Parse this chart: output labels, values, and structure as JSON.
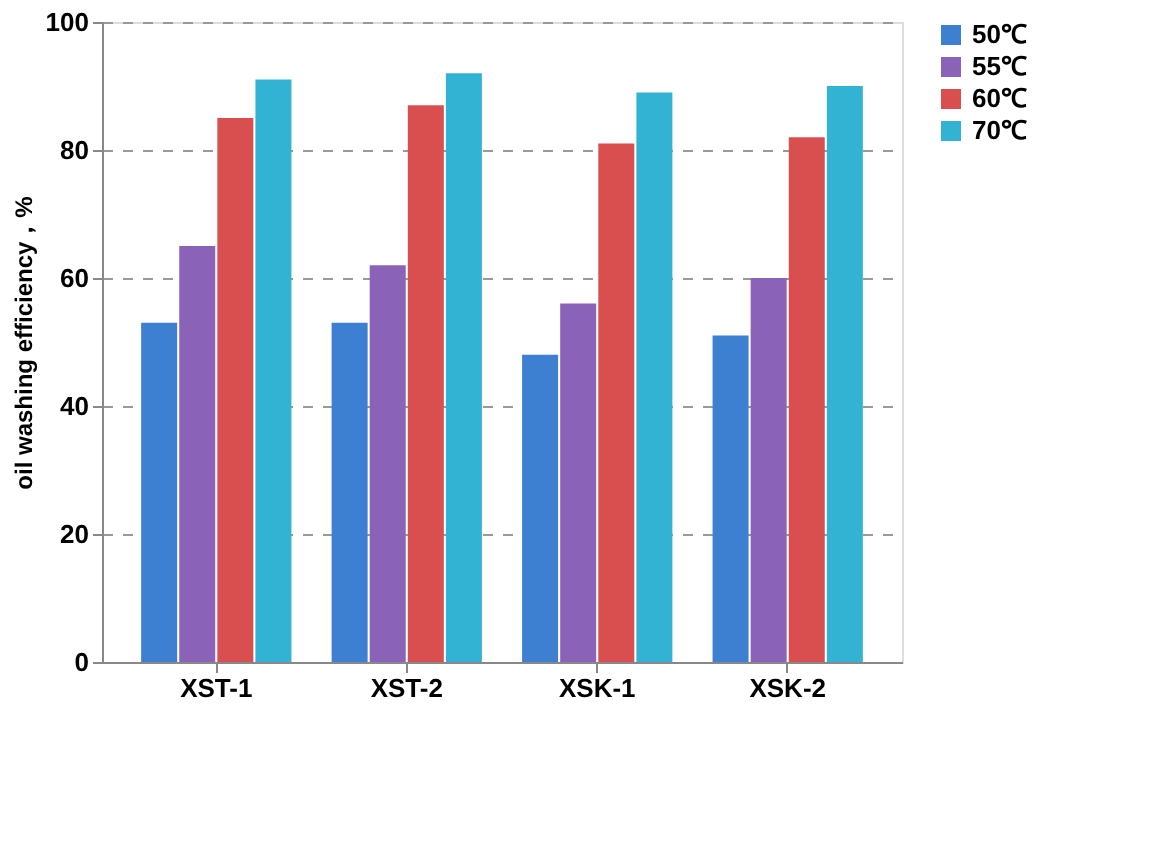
{
  "chart_data": {
    "type": "bar",
    "ylabel": "oil washing efficiency，%",
    "categories": [
      "XST-1",
      "XST-2",
      "XSK-1",
      "XSK-2"
    ],
    "series": [
      {
        "name": "50℃",
        "color": "#3d7fd0",
        "values": [
          53,
          53,
          48,
          51
        ]
      },
      {
        "name": "55℃",
        "color": "#8a62b8",
        "values": [
          65,
          62,
          56,
          60
        ]
      },
      {
        "name": "60℃",
        "color": "#d94f4f",
        "values": [
          85,
          87,
          81,
          82
        ]
      },
      {
        "name": "70℃",
        "color": "#33b3d3",
        "values": [
          91,
          92,
          89,
          90
        ]
      }
    ],
    "ylim": [
      0,
      100
    ],
    "yticks": [
      0,
      20,
      40,
      60,
      80,
      100
    ],
    "grid": "y",
    "legend": "right"
  }
}
